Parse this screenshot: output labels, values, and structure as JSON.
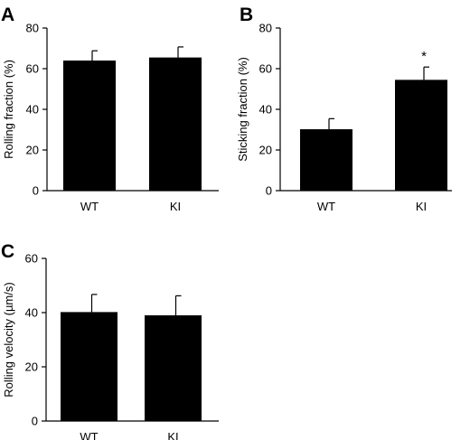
{
  "chart_data": [
    {
      "type": "bar",
      "panel": "A",
      "categories": [
        "WT",
        "KI"
      ],
      "values": [
        64,
        65.5
      ],
      "errors": [
        4.8,
        5.2
      ],
      "ylabel": "Rolling fraction (%)",
      "ylim": [
        0,
        80
      ],
      "yticks": [
        "0",
        "20",
        "40",
        "60",
        "80"
      ],
      "annotations": [
        "",
        ""
      ],
      "color": "#000000"
    },
    {
      "type": "bar",
      "panel": "B",
      "categories": [
        "WT",
        "KI"
      ],
      "values": [
        30.2,
        54.5
      ],
      "errors": [
        5.2,
        6.3
      ],
      "ylabel": "Sticking fraction (%)",
      "ylim": [
        0,
        80
      ],
      "yticks": [
        "0",
        "20",
        "40",
        "60",
        "80"
      ],
      "annotations": [
        "",
        "*"
      ],
      "color": "#000000"
    },
    {
      "type": "bar",
      "panel": "C",
      "categories": [
        "WT",
        "KI"
      ],
      "values": [
        40.2,
        39
      ],
      "errors": [
        6.5,
        7.2
      ],
      "ylabel": "Rolling velocity (µm/s)",
      "ylim": [
        0,
        60
      ],
      "yticks": [
        "0",
        "20",
        "40",
        "60"
      ],
      "annotations": [
        "",
        ""
      ],
      "color": "#000000"
    }
  ]
}
